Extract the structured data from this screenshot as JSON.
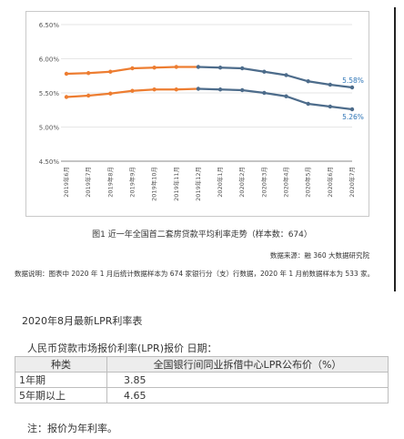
{
  "chart_data": {
    "type": "line",
    "categories": [
      "2019年6月",
      "2019年7月",
      "2019年8月",
      "2019年9月",
      "2019年10月",
      "2019年11月",
      "2019年12月",
      "2020年1月",
      "2020年2月",
      "2020年3月",
      "2020年4月",
      "2020年5月",
      "2020年6月",
      "2020年7月"
    ],
    "y_ticks": [
      "6.50%",
      "6.00%",
      "5.50%",
      "5.00%",
      "4.50%"
    ],
    "ylim": [
      4.5,
      6.5
    ],
    "series": [
      {
        "values": [
          5.78,
          5.79,
          5.81,
          5.86,
          5.87,
          5.88,
          5.88,
          5.87,
          5.86,
          5.81,
          5.76,
          5.67,
          5.62,
          5.58
        ],
        "color": "#ed7d31"
      },
      {
        "values": [
          5.44,
          5.46,
          5.49,
          5.53,
          5.55,
          5.55,
          5.56,
          5.55,
          5.54,
          5.5,
          5.45,
          5.34,
          5.3,
          5.26
        ],
        "color": "#ed7d31"
      }
    ],
    "gray_from_index": 6,
    "end_labels": [
      "5.58%",
      "5.26%"
    ],
    "label_color": "#2e75b6",
    "gray_color": "#4d6c8b"
  },
  "caption": "图1  近一年全国首二套房贷款平均利率走势（样本数：674）",
  "source": "数据来源：融 360 大数据研究院",
  "note": "数据说明：图表中 2020 年 1 月后统计数据样本为 674 家银行分（支）行数据，2020 年 1 月前数据样本为 533 家。",
  "section_title": "2020年8月最新LPR利率表",
  "table_title": "人民币贷款市场报价利率(LPR)报价 日期：",
  "table": {
    "headers": [
      "种类",
      "全国银行间同业拆借中心LPR公布价（%）"
    ],
    "rows": [
      {
        "type": "1年期",
        "value": "3.85"
      },
      {
        "type": "5年期以上",
        "value": "4.65"
      }
    ]
  },
  "footnote": "注：报价为年利率。"
}
